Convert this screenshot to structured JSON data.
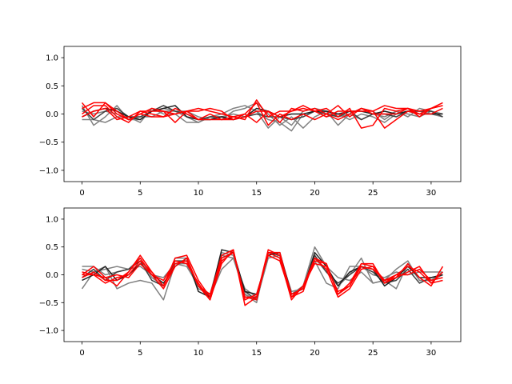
{
  "chart_data": [
    {
      "type": "line",
      "title": "",
      "xlabel": "",
      "ylabel": "",
      "xlim": [
        -1.55,
        32.55
      ],
      "ylim": [
        -1.2,
        1.2
      ],
      "xticks": [
        0,
        5,
        10,
        15,
        20,
        25,
        30
      ],
      "xtick_labels": [
        "0",
        "5",
        "10",
        "15",
        "20",
        "25",
        "30"
      ],
      "yticks": [
        -1.0,
        -0.5,
        0.0,
        0.5,
        1.0
      ],
      "ytick_labels": [
        "−1.0",
        "−0.5",
        "0.0",
        "0.5",
        "1.0"
      ],
      "grid": false,
      "legend": "none",
      "x": [
        0,
        1,
        2,
        3,
        4,
        5,
        6,
        7,
        8,
        9,
        10,
        11,
        12,
        13,
        14,
        15,
        16,
        17,
        18,
        19,
        20,
        21,
        22,
        23,
        24,
        25,
        26,
        27,
        28,
        29,
        30,
        31
      ],
      "series": [
        {
          "color": "#808080",
          "values": [
            0.15,
            -0.2,
            -0.05,
            0.15,
            -0.1,
            -0.1,
            0.05,
            0.1,
            0.05,
            -0.05,
            -0.15,
            -0.05,
            0.0,
            0.1,
            0.15,
            0.05,
            -0.25,
            -0.05,
            -0.2,
            0.05,
            0.1,
            0.05,
            -0.05,
            0.0,
            0.1,
            0.05,
            -0.1,
            0.05,
            -0.05,
            0.1,
            0.05,
            0.0
          ]
        },
        {
          "color": "#808080",
          "values": [
            -0.1,
            -0.1,
            -0.15,
            -0.05,
            -0.05,
            -0.15,
            0.1,
            0.0,
            0.0,
            -0.15,
            -0.15,
            -0.05,
            -0.1,
            0.05,
            0.1,
            0.2,
            0.0,
            -0.2,
            -0.05,
            -0.25,
            -0.05,
            0.05,
            -0.2,
            0.0,
            -0.1,
            0.0,
            -0.05,
            0.05,
            0.0,
            -0.05,
            0.05,
            0.0
          ]
        },
        {
          "color": "#808080",
          "values": [
            0.05,
            0.0,
            0.05,
            0.0,
            -0.1,
            -0.05,
            -0.05,
            0.05,
            0.05,
            0.05,
            -0.05,
            -0.1,
            -0.05,
            0.0,
            -0.05,
            0.05,
            -0.1,
            -0.15,
            -0.3,
            0.0,
            0.05,
            -0.05,
            0.0,
            -0.1,
            0.0,
            -0.05,
            -0.15,
            0.0,
            0.05,
            0.05,
            0.0,
            -0.05
          ]
        },
        {
          "color": "#404040",
          "values": [
            0.1,
            -0.1,
            0.05,
            0.1,
            -0.05,
            -0.05,
            0.05,
            0.15,
            0.05,
            0.0,
            -0.1,
            -0.05,
            -0.05,
            -0.1,
            -0.05,
            0.0,
            -0.05,
            -0.05,
            -0.1,
            -0.05,
            0.05,
            0.0,
            -0.05,
            0.05,
            -0.1,
            0.0,
            0.0,
            -0.05,
            0.05,
            0.05,
            0.05,
            -0.05
          ]
        },
        {
          "color": "#202020",
          "values": [
            -0.05,
            0.05,
            0.1,
            0.05,
            -0.05,
            -0.1,
            0.05,
            0.1,
            0.15,
            -0.05,
            -0.1,
            -0.1,
            -0.05,
            -0.1,
            -0.05,
            0.1,
            0.05,
            -0.05,
            0.0,
            0.0,
            0.05,
            0.05,
            0.0,
            0.05,
            0.05,
            0.0,
            0.05,
            0.0,
            0.05,
            0.0,
            0.0,
            0.0
          ]
        },
        {
          "color": "#ff0000",
          "values": [
            0.2,
            -0.05,
            0.2,
            0.05,
            -0.1,
            0.0,
            -0.05,
            -0.05,
            0.1,
            0.0,
            -0.1,
            -0.1,
            -0.1,
            -0.05,
            -0.1,
            0.25,
            -0.05,
            0.05,
            0.05,
            0.15,
            0.05,
            0.1,
            -0.05,
            0.1,
            -0.25,
            -0.2,
            0.1,
            0.05,
            0.1,
            -0.05,
            0.1,
            0.2
          ]
        },
        {
          "color": "#ff0000",
          "values": [
            -0.05,
            0.05,
            0.1,
            -0.1,
            -0.05,
            0.05,
            0.05,
            0.05,
            -0.15,
            0.05,
            0.1,
            0.05,
            0.0,
            -0.05,
            0.0,
            -0.15,
            0.05,
            -0.15,
            0.1,
            0.05,
            0.1,
            0.0,
            0.15,
            -0.05,
            0.1,
            0.05,
            -0.25,
            -0.1,
            0.05,
            0.0,
            0.1,
            0.15
          ]
        },
        {
          "color": "#ff0000",
          "values": [
            0.0,
            0.15,
            0.15,
            -0.05,
            -0.15,
            0.05,
            0.0,
            -0.05,
            0.0,
            0.05,
            0.05,
            0.1,
            0.05,
            -0.1,
            -0.05,
            0.05,
            0.05,
            -0.05,
            0.05,
            0.1,
            0.05,
            -0.05,
            0.05,
            0.05,
            0.05,
            0.05,
            0.15,
            0.1,
            0.1,
            0.05,
            0.1,
            0.15
          ]
        },
        {
          "color": "#ff0000",
          "values": [
            0.1,
            0.2,
            0.2,
            0.0,
            -0.1,
            0.0,
            0.1,
            0.05,
            0.0,
            0.05,
            -0.1,
            0.0,
            -0.1,
            -0.1,
            0.0,
            0.2,
            -0.2,
            0.0,
            -0.1,
            0.0,
            -0.1,
            0.0,
            -0.1,
            0.0,
            0.1,
            0.0,
            0.0,
            0.0,
            0.1,
            0.0,
            0.0,
            0.1
          ]
        }
      ]
    },
    {
      "type": "line",
      "title": "",
      "xlabel": "",
      "ylabel": "",
      "xlim": [
        -1.55,
        32.55
      ],
      "ylim": [
        -1.2,
        1.2
      ],
      "xticks": [
        0,
        5,
        10,
        15,
        20,
        25,
        30
      ],
      "xtick_labels": [
        "0",
        "5",
        "10",
        "15",
        "20",
        "25",
        "30"
      ],
      "yticks": [
        -1.0,
        -0.5,
        0.0,
        0.5,
        1.0
      ],
      "ytick_labels": [
        "−1.0",
        "−0.5",
        "0.0",
        "0.5",
        "1.0"
      ],
      "grid": false,
      "legend": "none",
      "x": [
        0,
        1,
        2,
        3,
        4,
        5,
        6,
        7,
        8,
        9,
        10,
        11,
        12,
        13,
        14,
        15,
        16,
        17,
        18,
        19,
        20,
        21,
        22,
        23,
        24,
        25,
        26,
        27,
        28,
        29,
        30,
        31
      ],
      "series": [
        {
          "color": "#808080",
          "values": [
            -0.25,
            0.05,
            0.15,
            -0.25,
            -0.15,
            -0.1,
            -0.15,
            -0.45,
            0.2,
            0.15,
            -0.2,
            -0.4,
            0.1,
            0.3,
            -0.35,
            -0.5,
            0.4,
            0.3,
            -0.4,
            -0.2,
            0.5,
            0.15,
            -0.05,
            -0.1,
            0.05,
            -0.15,
            -0.1,
            -0.25,
            0.2,
            -0.1,
            -0.1,
            0.0
          ]
        },
        {
          "color": "#808080",
          "values": [
            0.1,
            0.05,
            0.1,
            0.15,
            0.1,
            0.15,
            0.0,
            -0.05,
            0.2,
            0.2,
            -0.25,
            -0.35,
            0.4,
            0.35,
            -0.35,
            -0.45,
            0.3,
            0.35,
            -0.35,
            -0.2,
            0.3,
            0.05,
            -0.2,
            0.0,
            0.3,
            -0.15,
            -0.1,
            0.1,
            0.25,
            -0.1,
            -0.1,
            0.05
          ]
        },
        {
          "color": "#808080",
          "values": [
            0.15,
            0.15,
            0.0,
            0.05,
            0.1,
            0.3,
            -0.05,
            -0.2,
            0.3,
            0.3,
            -0.2,
            -0.35,
            0.35,
            0.3,
            -0.25,
            -0.4,
            0.4,
            0.35,
            -0.3,
            -0.25,
            0.25,
            -0.15,
            -0.25,
            0.15,
            0.15,
            0.0,
            -0.05,
            0.05,
            0.0,
            0.05,
            0.05,
            0.05
          ]
        },
        {
          "color": "#404040",
          "values": [
            -0.05,
            0.1,
            -0.1,
            0.05,
            0.1,
            0.25,
            -0.1,
            -0.2,
            0.25,
            0.25,
            -0.2,
            -0.4,
            0.3,
            0.4,
            -0.3,
            -0.45,
            0.4,
            0.35,
            -0.35,
            -0.25,
            0.35,
            0.05,
            -0.15,
            0.0,
            0.15,
            0.05,
            -0.15,
            -0.1,
            0.1,
            -0.15,
            -0.05,
            0.0
          ]
        },
        {
          "color": "#202020",
          "values": [
            -0.1,
            0.0,
            0.15,
            -0.1,
            0.0,
            0.2,
            0.0,
            -0.15,
            0.15,
            0.3,
            -0.3,
            -0.4,
            0.45,
            0.4,
            -0.3,
            -0.35,
            0.35,
            0.4,
            -0.35,
            -0.25,
            0.4,
            0.15,
            -0.2,
            0.05,
            0.15,
            0.1,
            -0.2,
            -0.05,
            0.15,
            -0.05,
            -0.05,
            0.0
          ]
        },
        {
          "color": "#ff0000",
          "values": [
            0.0,
            0.0,
            -0.05,
            -0.2,
            0.05,
            0.3,
            0.0,
            -0.25,
            0.15,
            0.3,
            -0.2,
            -0.45,
            0.2,
            0.45,
            -0.55,
            -0.4,
            0.4,
            0.3,
            -0.45,
            -0.2,
            0.3,
            0.1,
            -0.4,
            -0.25,
            0.1,
            0.15,
            -0.1,
            -0.05,
            0.2,
            -0.05,
            -0.2,
            0.15
          ]
        },
        {
          "color": "#ff0000",
          "values": [
            -0.05,
            0.05,
            -0.1,
            -0.1,
            0.05,
            0.35,
            0.05,
            -0.2,
            0.3,
            0.35,
            -0.1,
            -0.4,
            0.35,
            0.45,
            -0.45,
            -0.35,
            0.35,
            0.25,
            -0.4,
            -0.3,
            0.3,
            0.2,
            -0.35,
            -0.2,
            0.2,
            0.15,
            -0.15,
            -0.05,
            0.05,
            0.15,
            -0.15,
            0.05
          ]
        },
        {
          "color": "#ff0000",
          "values": [
            0.05,
            0.0,
            -0.15,
            -0.05,
            0.0,
            0.25,
            0.05,
            -0.2,
            0.2,
            0.25,
            -0.2,
            -0.35,
            0.3,
            0.4,
            -0.4,
            -0.4,
            0.45,
            0.35,
            -0.35,
            -0.25,
            0.25,
            0.2,
            -0.35,
            -0.15,
            0.2,
            0.2,
            -0.15,
            0.0,
            0.0,
            0.1,
            -0.1,
            -0.05
          ]
        },
        {
          "color": "#ff0000",
          "values": [
            0.0,
            0.15,
            -0.05,
            0.0,
            -0.05,
            0.2,
            0.0,
            -0.1,
            0.25,
            0.2,
            -0.15,
            -0.45,
            0.25,
            0.4,
            -0.4,
            -0.45,
            0.4,
            0.4,
            -0.4,
            -0.2,
            0.2,
            0.15,
            -0.3,
            -0.2,
            0.15,
            0.1,
            -0.1,
            0.0,
            0.15,
            0.05,
            -0.15,
            -0.1
          ]
        }
      ]
    }
  ]
}
